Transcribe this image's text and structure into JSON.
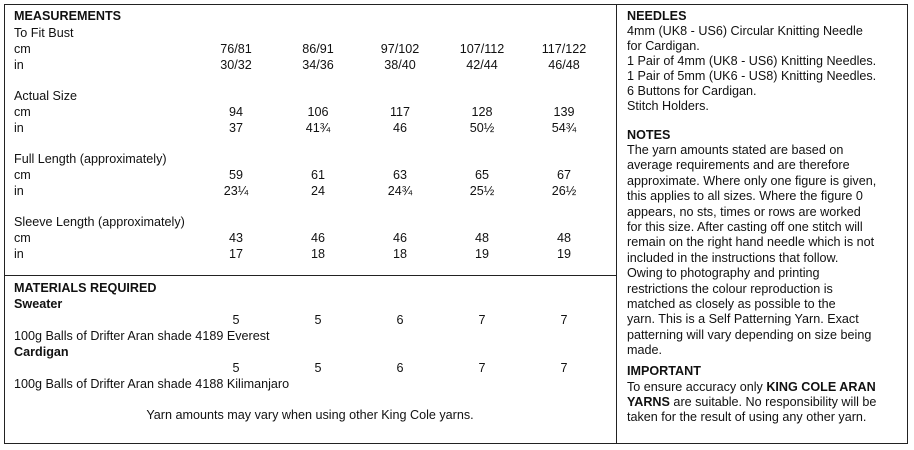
{
  "measurements": {
    "heading": "MEASUREMENTS",
    "sections": [
      {
        "title": "To Fit Bust",
        "rows": [
          {
            "unit": "cm",
            "values": [
              "76/81",
              "86/91",
              "97/102",
              "107/112",
              "117/122"
            ]
          },
          {
            "unit": "in",
            "values": [
              "30/32",
              "34/36",
              "38/40",
              "42/44",
              "46/48"
            ]
          }
        ]
      },
      {
        "title": "Actual Size",
        "rows": [
          {
            "unit": "cm",
            "values": [
              "94",
              "106",
              "117",
              "128",
              "139"
            ]
          },
          {
            "unit": "in",
            "values": [
              "37",
              "41¾",
              "46",
              "50½",
              "54¾"
            ]
          }
        ]
      },
      {
        "title": "Full Length (approximately)",
        "rows": [
          {
            "unit": "cm",
            "values": [
              "59",
              "61",
              "63",
              "65",
              "67"
            ]
          },
          {
            "unit": "in",
            "values": [
              "23¼",
              "24",
              "24¾",
              "25½",
              "26½"
            ]
          }
        ]
      },
      {
        "title": "Sleeve Length (approximately)",
        "rows": [
          {
            "unit": "cm",
            "values": [
              "43",
              "46",
              "46",
              "48",
              "48"
            ]
          },
          {
            "unit": "in",
            "values": [
              "17",
              "18",
              "18",
              "19",
              "19"
            ]
          }
        ]
      }
    ]
  },
  "materials": {
    "heading": "MATERIALS REQUIRED",
    "items": [
      {
        "name": "Sweater",
        "values": [
          "5",
          "5",
          "6",
          "7",
          "7"
        ],
        "description": "100g Balls of Drifter Aran shade 4189 Everest"
      },
      {
        "name": "Cardigan",
        "values": [
          "5",
          "5",
          "6",
          "7",
          "7"
        ],
        "description": "100g Balls of Drifter Aran shade 4188 Kilimanjaro"
      }
    ],
    "footnote": "Yarn amounts may vary when using other King Cole yarns."
  },
  "needles": {
    "heading": "NEEDLES",
    "lines": [
      "4mm (UK8 - US6) Circular Knitting Needle",
      "for Cardigan.",
      "1 Pair of 4mm (UK8 - US6) Knitting Needles.",
      "1 Pair of 5mm (UK6 - US8) Knitting Needles.",
      "6 Buttons for Cardigan.",
      "Stitch Holders."
    ]
  },
  "notes": {
    "heading": "NOTES",
    "lines": [
      "The yarn amounts stated are based on",
      "average requirements and are therefore",
      "approximate. Where only one figure is given,",
      "this applies to all sizes. Where the figure 0",
      "appears, no sts, times or rows are worked",
      "for this size. After casting off one stitch will",
      "remain on the right hand needle which is not",
      "included in the instructions that follow.",
      "Owing to photography and printing",
      "restrictions the colour reproduction is",
      "matched as closely as possible to the",
      "yarn. This is a Self Patterning Yarn. Exact",
      "patterning will vary depending on size being",
      "made."
    ]
  },
  "important": {
    "heading": "IMPORTANT",
    "line1": "To ensure accuracy only ",
    "brand1": "KING COLE ARAN",
    "brand2": "YARNS",
    "line2_rest": " are suitable. No responsibility will be",
    "line3": "taken for the result of using any other yarn."
  }
}
